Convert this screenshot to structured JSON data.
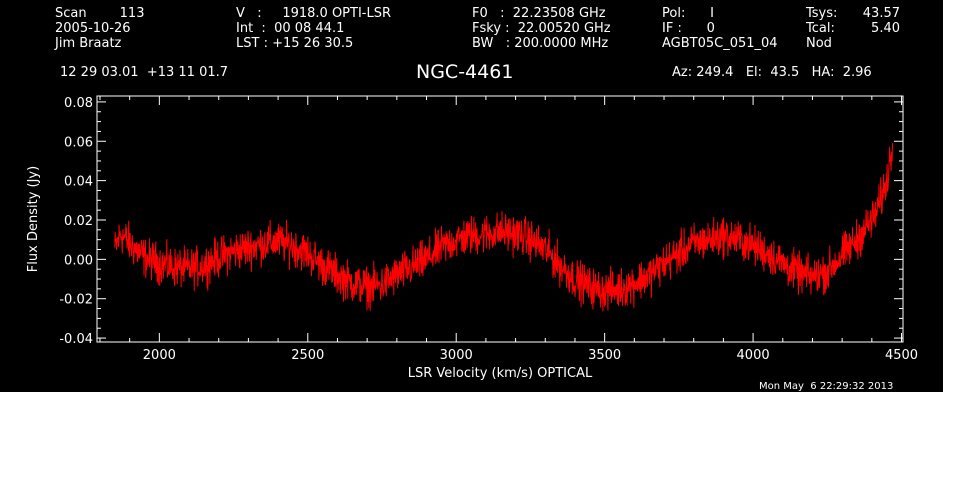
{
  "header": {
    "col1": [
      "Scan        113",
      "2005-10-26",
      "Jim Braatz"
    ],
    "col2": [
      "V   :     1918.0 OPTI-LSR",
      "Int  :  00 08 44.1",
      "LST : +15 26 30.5"
    ],
    "col3": [
      "F0   :  22.23508 GHz",
      "Fsky :  22.00520 GHz",
      "BW   : 200.0000 MHz"
    ],
    "col4": [
      "Pol:      I",
      "IF :      0",
      "AGBT05C_051_04"
    ],
    "col5a": [
      "Tsys:",
      "Tcal:",
      "Nod"
    ],
    "col5b": [
      "43.57",
      "5.40"
    ],
    "coords": "12 29 03.01  +13 11 01.7",
    "source": "NGC-4461",
    "azel": "Az: 249.4   El:  43.5   HA:  2.96",
    "date": "Mon May  6 22:29:32 2013"
  },
  "colors": {
    "background": "#000000",
    "axes": "#ffffff",
    "series": "#ff0000"
  },
  "chart_data": {
    "type": "line",
    "title": "NGC-4461",
    "xlabel": "LSR Velocity (km/s) OPTICAL",
    "ylabel": "Flux Density (Jy)",
    "xlim": [
      1790,
      4505
    ],
    "ylim": [
      -0.042,
      0.083
    ],
    "xticks": [
      2000,
      2500,
      3000,
      3500,
      4000,
      4500
    ],
    "xtick_labels": [
      "2000",
      "2500",
      "3000",
      "3500",
      "4000",
      "4500"
    ],
    "yticks": [
      -0.04,
      -0.02,
      0.0,
      0.02,
      0.04,
      0.06,
      0.08
    ],
    "ytick_labels": [
      "-0.04",
      "-0.02",
      "0.00",
      "0.02",
      "0.04",
      "0.06",
      "0.08"
    ],
    "grid": false,
    "noise_amplitude": 0.009,
    "series": [
      {
        "x": [
          1850,
          1870,
          1900,
          1950,
          2000,
          2050,
          2100,
          2150,
          2200,
          2250,
          2300,
          2350,
          2400,
          2450,
          2500,
          2550,
          2600,
          2650,
          2700,
          2750,
          2800,
          2850,
          2900,
          2950,
          3000,
          3050,
          3100,
          3150,
          3200,
          3250,
          3300,
          3350,
          3400,
          3450,
          3500,
          3550,
          3600,
          3650,
          3700,
          3750,
          3800,
          3850,
          3900,
          3950,
          4000,
          4050,
          4100,
          4150,
          4200,
          4250,
          4300,
          4350,
          4380,
          4410,
          4430,
          4450,
          4470
        ],
        "y": [
          0.005,
          0.013,
          0.008,
          0.001,
          -0.002,
          -0.004,
          -0.005,
          -0.003,
          0.001,
          0.004,
          0.006,
          0.008,
          0.009,
          0.007,
          0.003,
          -0.003,
          -0.008,
          -0.012,
          -0.014,
          -0.013,
          -0.008,
          -0.004,
          0.0,
          0.006,
          0.01,
          0.012,
          0.013,
          0.014,
          0.013,
          0.01,
          0.005,
          -0.003,
          -0.01,
          -0.014,
          -0.016,
          -0.015,
          -0.012,
          -0.008,
          -0.002,
          0.003,
          0.008,
          0.01,
          0.012,
          0.01,
          0.007,
          0.003,
          -0.002,
          -0.007,
          -0.009,
          -0.006,
          0.002,
          0.01,
          0.016,
          0.022,
          0.03,
          0.04,
          0.058
        ]
      }
    ]
  }
}
